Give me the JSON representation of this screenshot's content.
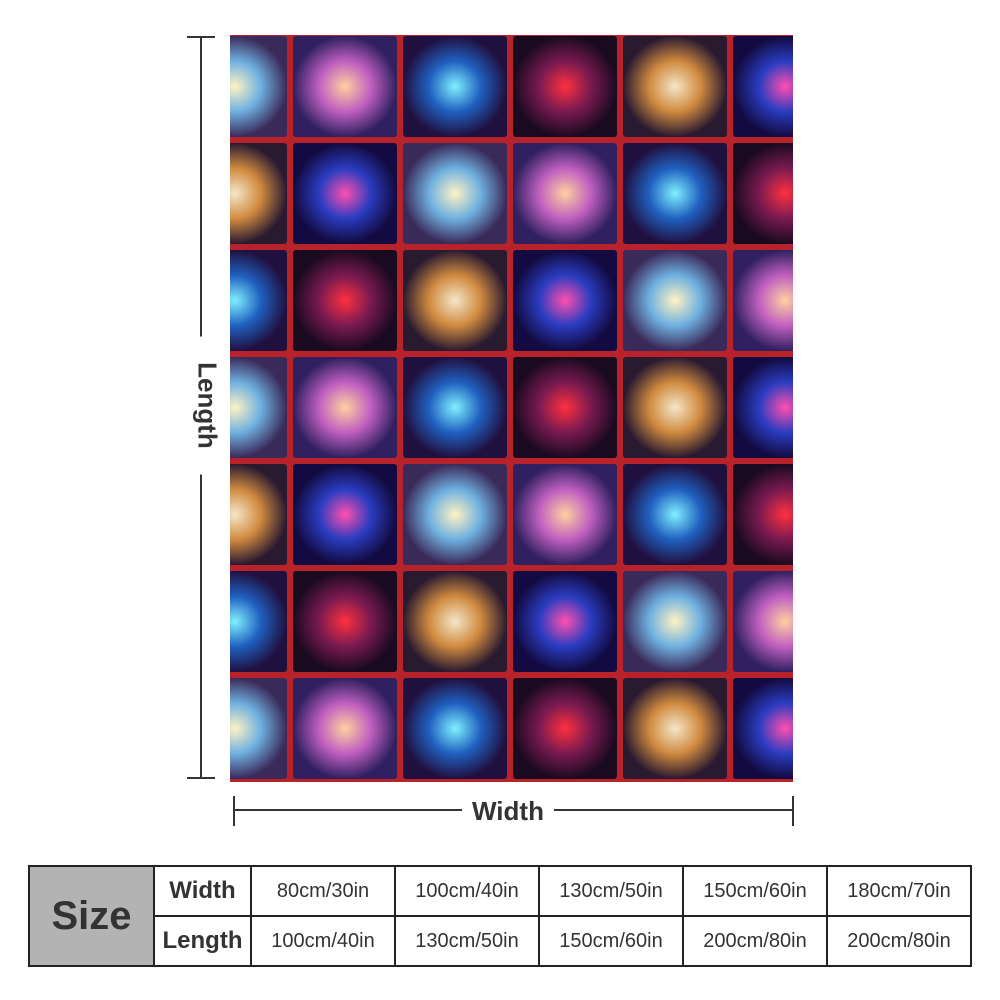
{
  "labels": {
    "length": "Length",
    "width": "Width"
  },
  "table": {
    "title": "Size",
    "rows": [
      [
        "Width",
        "80cm/30in",
        "100cm/40in",
        "130cm/50in",
        "150cm/60in",
        "180cm/70in"
      ],
      [
        "Length",
        "100cm/40in",
        "130cm/50in",
        "150cm/60in",
        "200cm/80in",
        "200cm/80in"
      ]
    ]
  }
}
